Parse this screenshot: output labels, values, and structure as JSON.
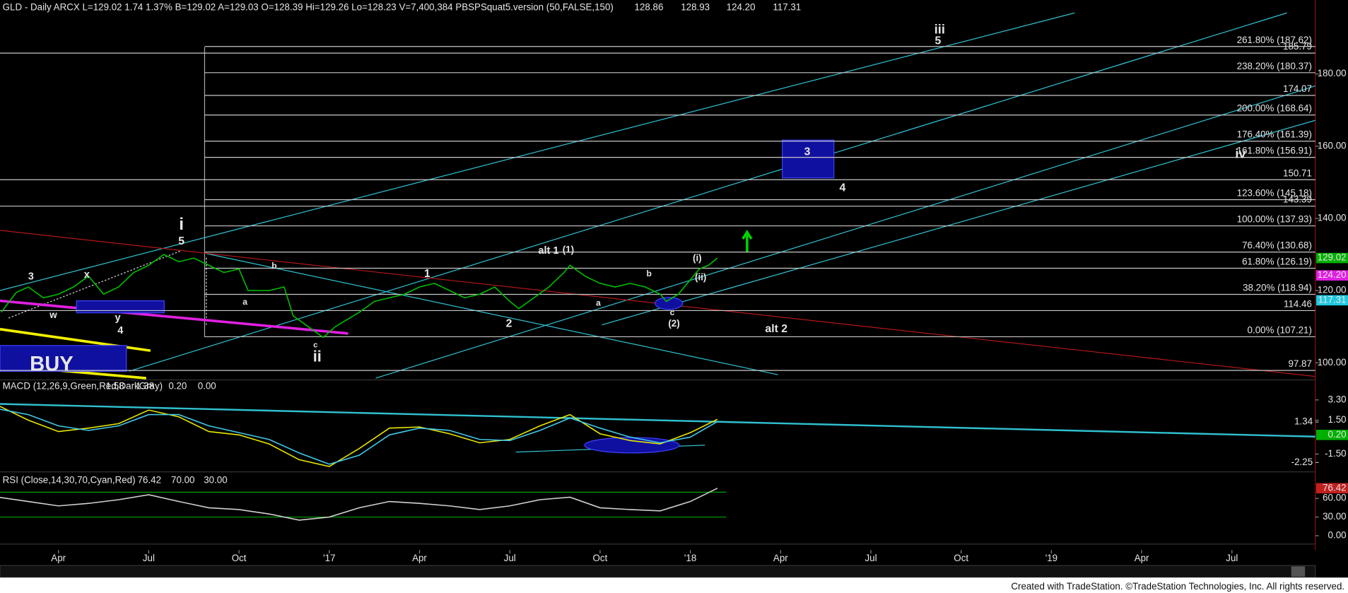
{
  "header": {
    "symbol": "GLD - Daily ARCX L=129.02 1.74 1.37% B=129.02 A=129.03 O=128.39 Hi=129.26 Lo=128.23 V=7,400,384 PBSPSquat5.version (50,FALSE,150)",
    "readings": [
      {
        "text": "128.86",
        "color": "#7fe0e0"
      },
      {
        "text": "128.93",
        "color": "#e8e800"
      },
      {
        "text": "124.20",
        "color": "#ff30ff"
      },
      {
        "text": "117.31",
        "color": "#40d8e8"
      }
    ]
  },
  "chart_data": [
    {
      "type": "line",
      "x": [
        0.1,
        0.6,
        1.0,
        1.5,
        2.0,
        2.5,
        3.0,
        3.5,
        4.0,
        4.5,
        5.0,
        5.5,
        6.0,
        6.5,
        7.0,
        7.5,
        8.0,
        8.3,
        9.0,
        9.5,
        9.8,
        10.3,
        10.8,
        11.2,
        11.6,
        12.0,
        12.5,
        13.0,
        13.5,
        14.0,
        14.5,
        15.0,
        15.5,
        16.0,
        16.5,
        17.0,
        17.3,
        17.8,
        18.3,
        18.8,
        19.0,
        19.5,
        20.0,
        20.5,
        21.0,
        21.5,
        22.0,
        22.2,
        22.6,
        23.0,
        23.3,
        23.6,
        23.9
      ],
      "series": [
        {
          "color": "#00c000",
          "values": [
            114,
            119.5,
            121,
            118,
            119,
            121,
            124,
            119,
            121,
            125,
            127,
            130,
            128,
            129,
            127,
            125,
            126,
            120,
            120,
            121,
            113,
            110,
            107,
            110,
            112,
            114,
            117,
            118,
            119,
            121,
            122,
            120,
            118,
            119,
            121,
            117,
            115,
            118,
            121,
            125,
            127,
            124,
            122,
            121,
            122,
            121,
            119,
            117,
            119,
            123,
            126,
            127,
            129.02
          ]
        }
      ],
      "xlim": [
        0,
        43.8
      ],
      "xticks": [
        {
          "value": 2,
          "label": "Apr"
        },
        {
          "value": 5,
          "label": "Jul"
        },
        {
          "value": 8,
          "label": "Oct"
        },
        {
          "value": 11,
          "label": "'17"
        },
        {
          "value": 14,
          "label": "Apr"
        },
        {
          "value": 17,
          "label": "Jul"
        },
        {
          "value": 20,
          "label": "Oct"
        },
        {
          "value": 23,
          "label": "'18"
        },
        {
          "value": 26,
          "label": "Apr"
        },
        {
          "value": 29,
          "label": "Jul"
        },
        {
          "value": 32,
          "label": "Oct"
        },
        {
          "value": 35,
          "label": "'19"
        },
        {
          "value": 38,
          "label": "Apr"
        },
        {
          "value": 41,
          "label": "Jul"
        }
      ],
      "ylim": [
        95.5,
        200.5
      ],
      "yticks": [
        {
          "value": 180,
          "label": "180.00"
        },
        {
          "value": 160,
          "label": "160.00"
        },
        {
          "value": 140,
          "label": "140.00"
        },
        {
          "value": 120,
          "label": "120.00"
        },
        {
          "value": 100,
          "label": "100.00"
        }
      ],
      "fib_levels": [
        {
          "value": 187.62,
          "label": "261.80% (187.62)"
        },
        {
          "value": 185.79,
          "label": "185.79",
          "extends_left": true
        },
        {
          "value": 180.37,
          "label": "238.20% (180.37)"
        },
        {
          "value": 174.07,
          "label": "174.07"
        },
        {
          "value": 168.64,
          "label": "200.00% (168.64)"
        },
        {
          "value": 161.39,
          "label": "176.40% (161.39)"
        },
        {
          "value": 156.91,
          "label": "161.80% (156.91)",
          "color": "#c8c040"
        },
        {
          "value": 150.71,
          "label": "150.71",
          "extends_left": true
        },
        {
          "value": 145.18,
          "label": "123.60% (145.18)"
        },
        {
          "value": 143.39,
          "label": "143.39",
          "extends_left": true
        },
        {
          "value": 137.93,
          "label": "100.00% (137.93)"
        },
        {
          "value": 130.68,
          "label": "76.40% (130.68)"
        },
        {
          "value": 126.19,
          "label": "61.80% (126.19)",
          "color": "#c8c040"
        },
        {
          "value": 118.94,
          "label": "38.20% (118.94)"
        },
        {
          "value": 114.46,
          "label": "114.46",
          "extends_left": true
        },
        {
          "value": 107.21,
          "label": "0.00% (107.21)"
        },
        {
          "value": 97.87,
          "label": "97.87",
          "extends_left": true
        }
      ],
      "markers": [
        {
          "value": 129.02,
          "label": "129.02",
          "box": "#00b000"
        },
        {
          "value": 124.2,
          "label": "124.20",
          "box": "#e020e0"
        },
        {
          "value": 117.31,
          "label": "117.31",
          "box": "#20c8e0"
        }
      ],
      "wave_labels": [
        {
          "text": "i",
          "color": "#00d000"
        },
        {
          "text": "5",
          "color": "#00d000"
        },
        {
          "text": "3",
          "color": "#00d000"
        },
        {
          "text": "x",
          "color": "#00d000"
        },
        {
          "text": "w",
          "color": "#00d000"
        },
        {
          "text": "y",
          "color": "#b8e000"
        },
        {
          "text": "4",
          "color": "#00d000"
        },
        {
          "text": "ii",
          "color": "#00d000"
        },
        {
          "text": "c",
          "color": "#a0a0a0"
        },
        {
          "text": "iii",
          "color": "#a8e000"
        },
        {
          "text": "5",
          "color": "#a8e000"
        },
        {
          "text": "3",
          "color": "#00d000"
        },
        {
          "text": "4",
          "color": "#00d000"
        },
        {
          "text": "1",
          "color": "#00d000"
        },
        {
          "text": "2",
          "color": "#00d000"
        },
        {
          "text": "(2)",
          "color": "#00d000"
        },
        {
          "text": "c",
          "color": "#00d000"
        },
        {
          "text": "(i)",
          "color": "#00d000"
        },
        {
          "text": "(ii)",
          "color": "#00d000"
        },
        {
          "text": "iv",
          "color": "#00d000"
        },
        {
          "text": "b",
          "color": "#00d000"
        },
        {
          "text": "a",
          "color": "#00d000"
        },
        {
          "text": "a",
          "color": "#00d000"
        },
        {
          "text": "b",
          "color": "#00d000"
        },
        {
          "text": "alt 1",
          "color": "#f0f000"
        },
        {
          "text": "(1)",
          "color": "#f0f000"
        },
        {
          "text": "alt 2",
          "color": "#f0f000"
        },
        {
          "text": "BUY",
          "color": "#f0f000"
        }
      ]
    },
    {
      "type": "line",
      "title": "MACD (12,26,9,Green,Red,DarkGray)",
      "readings": [
        {
          "text": "1.58",
          "color": "#e8e800"
        },
        {
          "text": "1.38",
          "color": "#40d8e8"
        },
        {
          "text": "0.20",
          "color": "#00c000"
        },
        {
          "text": "0.00",
          "color": "#707070"
        }
      ],
      "x": [
        0,
        1,
        2,
        3,
        4,
        5,
        6,
        7,
        8,
        9,
        10,
        11,
        12,
        13,
        14,
        15,
        16,
        17,
        18,
        19,
        20,
        21,
        22,
        23,
        23.9
      ],
      "series": [
        {
          "color": "#e8e800",
          "values": [
            2.8,
            1.5,
            0.5,
            0.8,
            1.2,
            2.4,
            1.8,
            0.5,
            0.2,
            -0.6,
            -2.0,
            -2.6,
            -1.0,
            0.8,
            0.9,
            0.3,
            -0.5,
            -0.2,
            1.0,
            2.0,
            0.3,
            -0.3,
            -0.6,
            0.4,
            1.58
          ]
        },
        {
          "color": "#40c8e8",
          "values": [
            2.5,
            2.0,
            1.0,
            0.6,
            1.0,
            2.0,
            2.0,
            1.0,
            0.4,
            -0.2,
            -1.4,
            -2.4,
            -1.6,
            0.2,
            0.8,
            0.6,
            -0.2,
            -0.3,
            0.6,
            1.7,
            0.8,
            0.0,
            -0.5,
            0.0,
            1.38
          ]
        }
      ],
      "ylim": [
        -3.0,
        5.0
      ],
      "yticks": [
        {
          "value": 3.3,
          "label": "3.30"
        },
        {
          "value": 1.5,
          "label": "1.50"
        },
        {
          "value": -1.5,
          "label": "-1.50"
        }
      ],
      "markers": [
        {
          "value": 1.34,
          "label": "1.34"
        },
        {
          "value": 0.2,
          "label": "0.20",
          "box": "#00b000"
        },
        {
          "value": -2.25,
          "label": "-2.25"
        }
      ]
    },
    {
      "type": "line",
      "title": "RSI (Close,14,30,70,Cyan,Red)",
      "readings": [
        {
          "text": "76.42",
          "color": "#ff6060"
        },
        {
          "text": "70.00",
          "color": "#00c000"
        },
        {
          "text": "30.00",
          "color": "#00c000"
        }
      ],
      "x": [
        0,
        1,
        2,
        3,
        4,
        5,
        6,
        7,
        8,
        9,
        10,
        11,
        12,
        13,
        14,
        15,
        16,
        17,
        18,
        19,
        20,
        21,
        22,
        23,
        23.9
      ],
      "series": [
        {
          "color": "#d0d0d0",
          "values": [
            62,
            55,
            48,
            52,
            58,
            66,
            55,
            45,
            42,
            35,
            25,
            30,
            45,
            55,
            52,
            48,
            42,
            48,
            58,
            62,
            45,
            42,
            40,
            55,
            76.42
          ]
        }
      ],
      "levels": [
        70,
        30
      ],
      "ylim": [
        -12,
        100
      ],
      "yticks": [
        {
          "value": 60,
          "label": "60.00"
        },
        {
          "value": 30,
          "label": "30.00"
        },
        {
          "value": 0,
          "label": "0.00"
        }
      ],
      "markers": [
        {
          "value": 76.42,
          "label": "76.42",
          "box": "#c02020"
        }
      ]
    }
  ],
  "footer": "Created with TradeStation. ©TradeStation Technologies, Inc. All rights reserved."
}
